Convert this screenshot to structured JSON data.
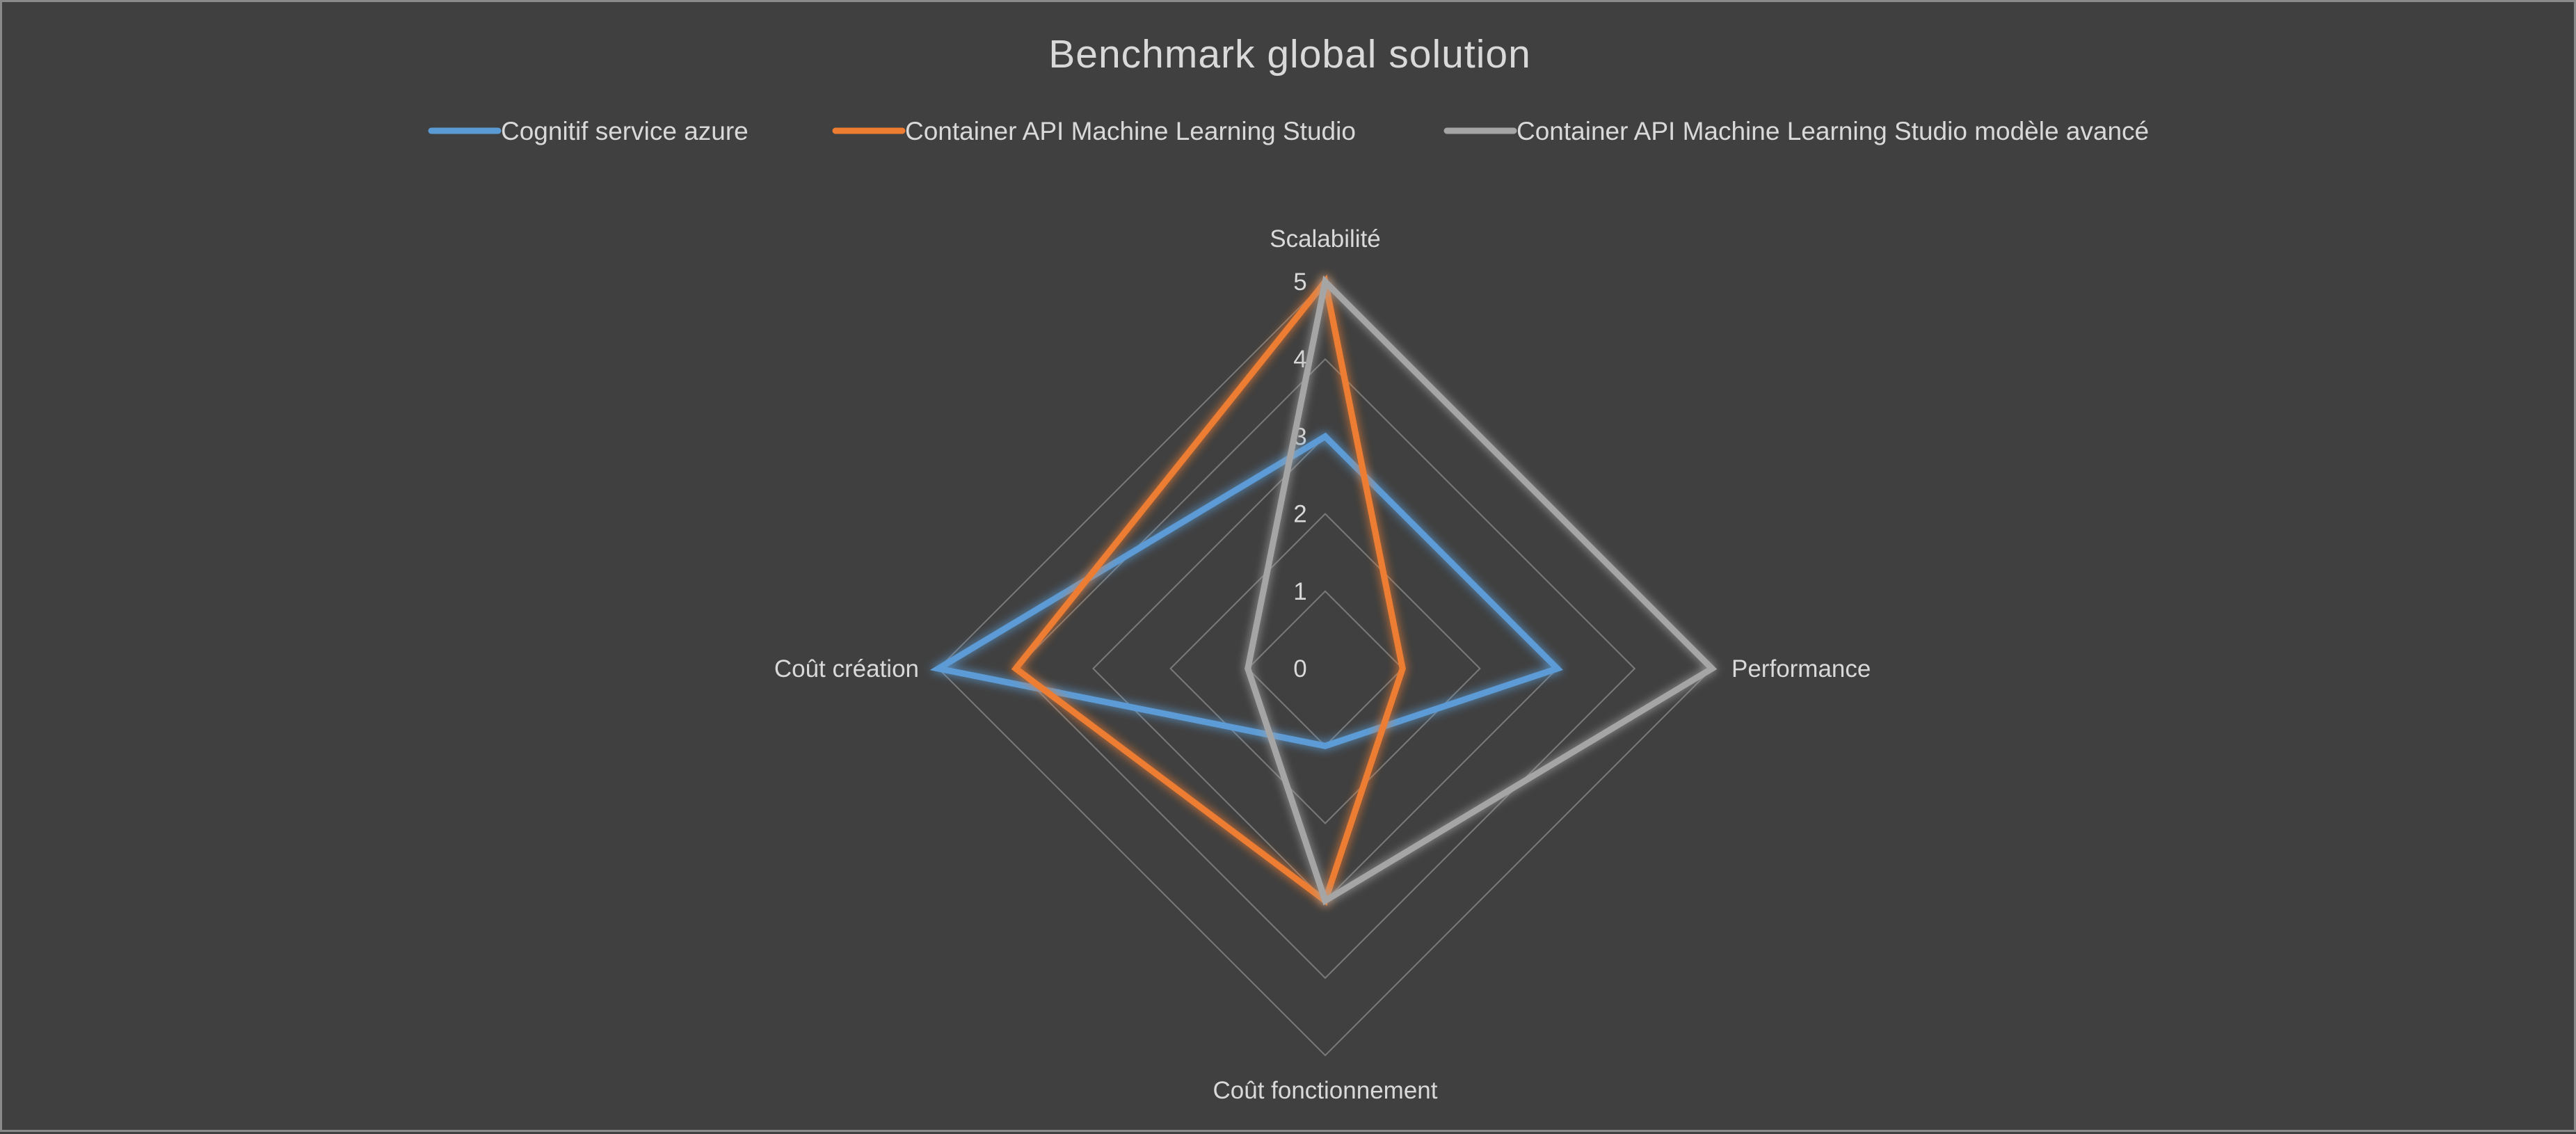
{
  "chart_data": {
    "type": "radar",
    "title": "Benchmark global solution",
    "categories": [
      "Scalabilité",
      "Performance",
      "Coût fonctionnement",
      "Coût création"
    ],
    "series": [
      {
        "name": "Cognitif service azure",
        "values": [
          3,
          3,
          1,
          5
        ],
        "color": "#5b9bd5"
      },
      {
        "name": "Container API Machine Learning Studio",
        "values": [
          5,
          1,
          3,
          4
        ],
        "color": "#ed7d31"
      },
      {
        "name": "Container API Machine Learning Studio modèle avancé",
        "values": [
          5,
          5,
          3,
          1
        ],
        "color": "#a5a5a5"
      }
    ],
    "rlim": [
      0,
      5
    ],
    "ticks": [
      "0",
      "1",
      "2",
      "3",
      "4",
      "5"
    ],
    "grid": true,
    "legend_position": "top"
  }
}
